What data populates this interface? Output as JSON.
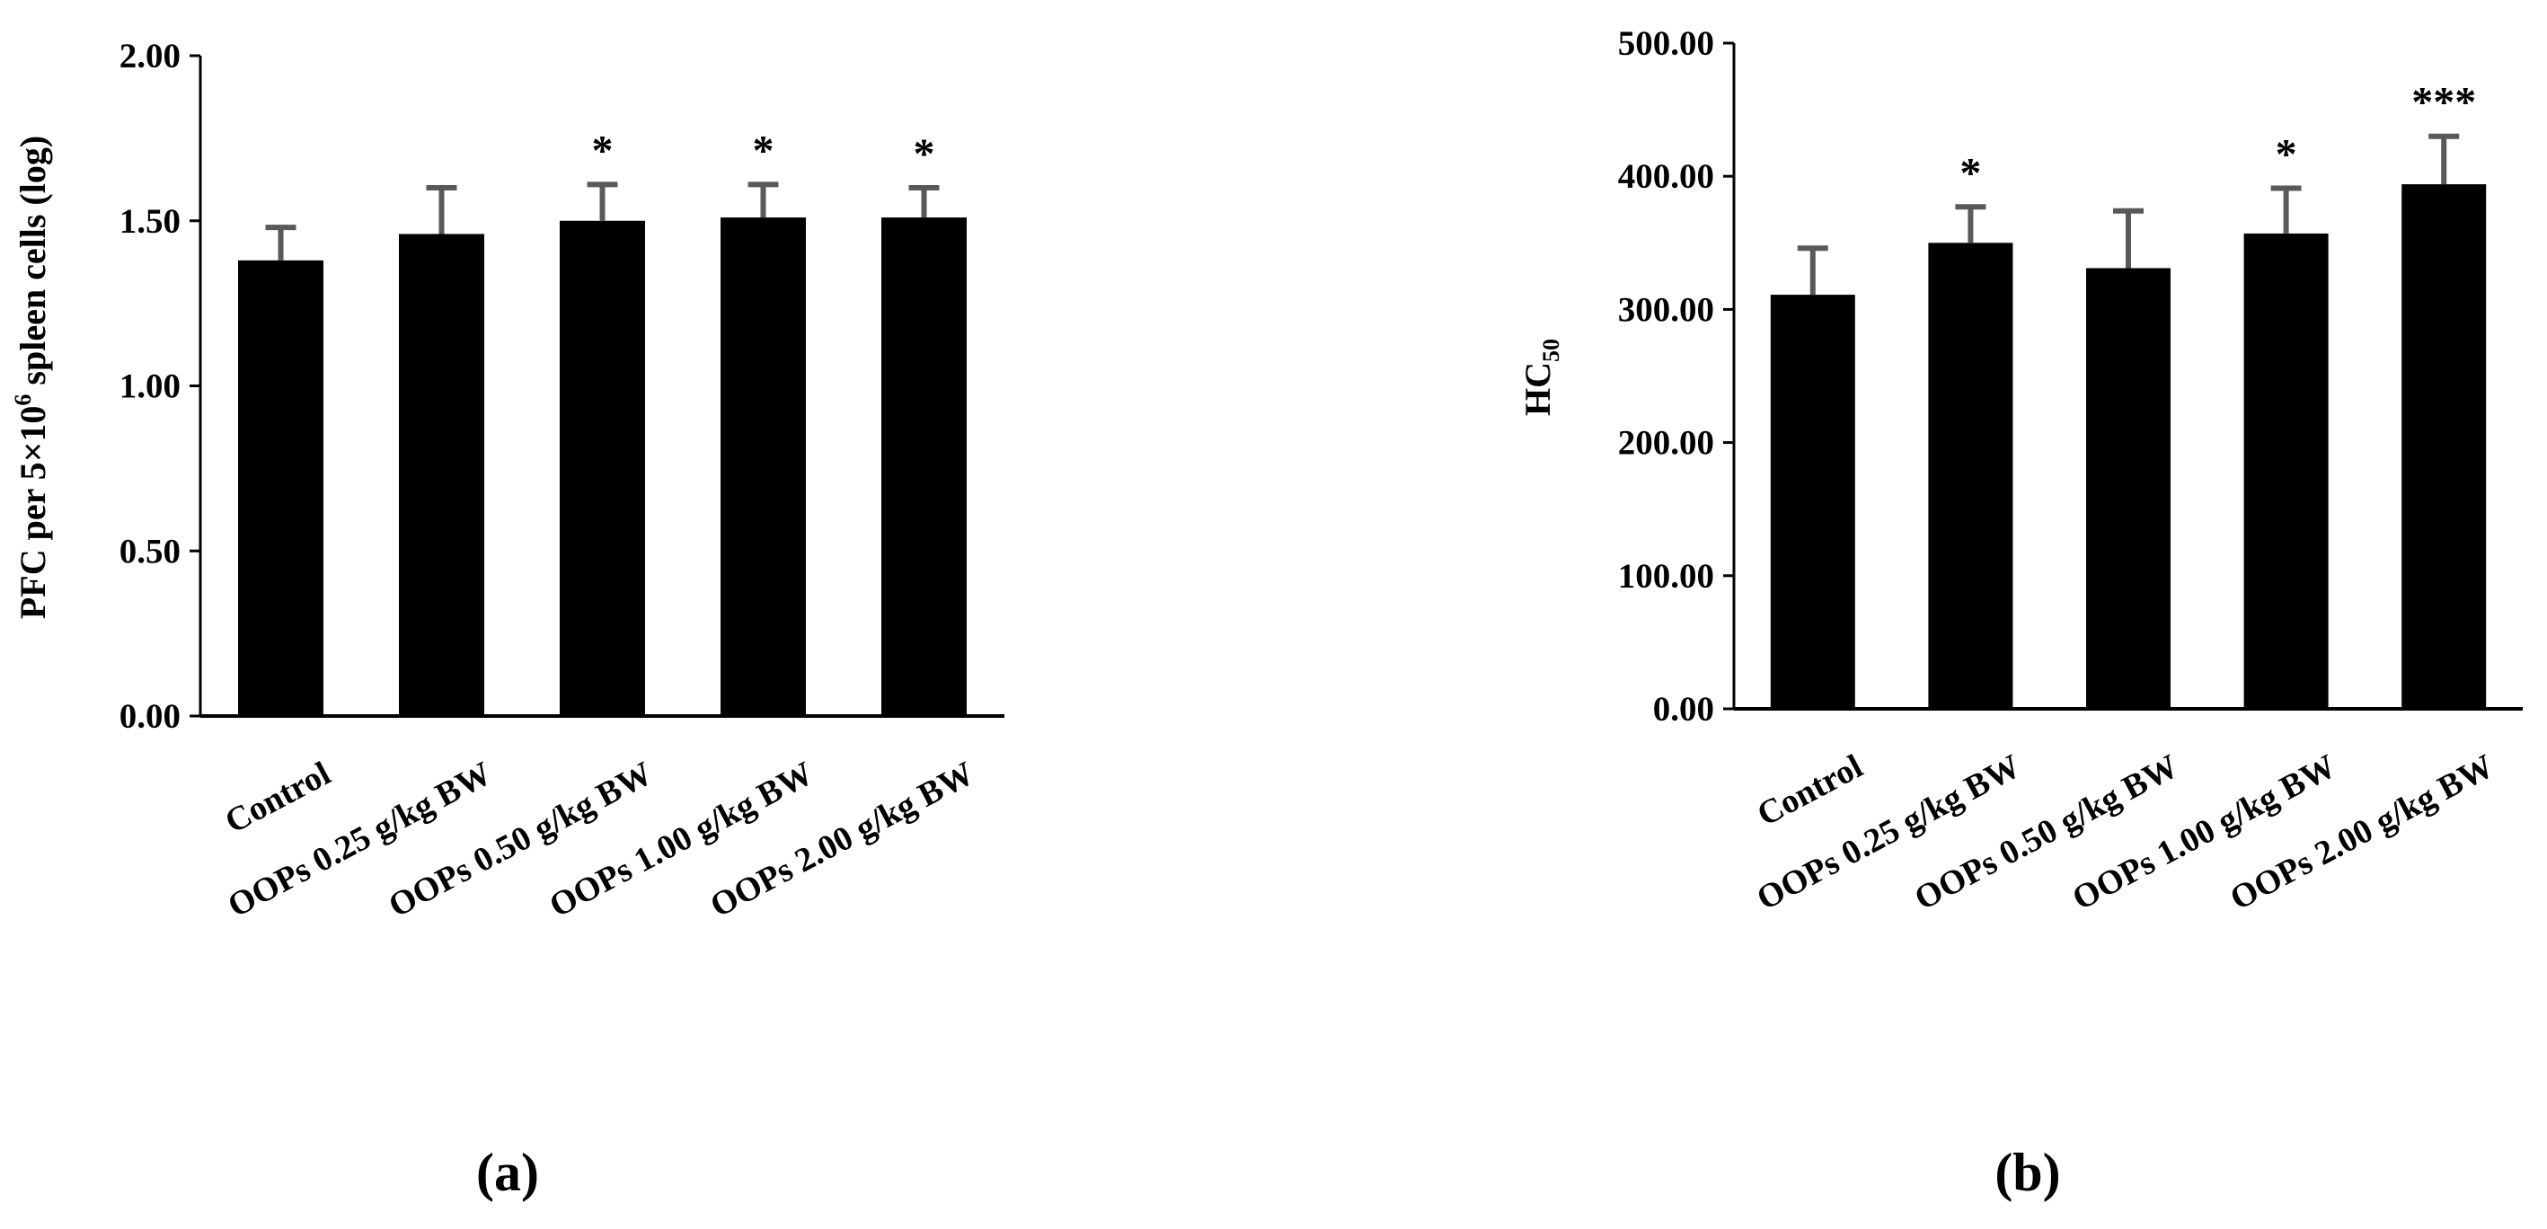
{
  "colors": {
    "bar": "#000000",
    "error_bar": "#595959",
    "axis": "#000000",
    "text": "#000000"
  },
  "chart_data": [
    {
      "type": "bar",
      "panel_label": "(a)",
      "title": "",
      "xlabel": "",
      "ylabel": {
        "main": "PFC per 5×10",
        "sup": "6",
        "rest": " spleen cells (log)"
      },
      "ylim": [
        0,
        2
      ],
      "yticks": [
        0,
        0.5,
        1,
        1.5,
        2
      ],
      "ytick_labels": [
        "0.00",
        "0.50",
        "1.00",
        "1.50",
        "2.00"
      ],
      "grid": false,
      "categories": [
        "Control",
        "OOPs 0.25 g/kg BW",
        "OOPs 0.50 g/kg BW",
        "OOPs 1.00 g/kg BW",
        "OOPs 2.00 g/kg BW"
      ],
      "values": [
        1.38,
        1.46,
        1.5,
        1.51,
        1.51
      ],
      "errors": [
        0.1,
        0.14,
        0.11,
        0.1,
        0.09
      ],
      "annotations": [
        "",
        "",
        "*",
        "*",
        "*"
      ]
    },
    {
      "type": "bar",
      "panel_label": "(b)",
      "title": "",
      "xlabel": "",
      "ylabel": {
        "main": "HC",
        "sub": "50"
      },
      "ylim": [
        0,
        500
      ],
      "yticks": [
        0,
        100,
        200,
        300,
        400,
        500
      ],
      "ytick_labels": [
        "0.00",
        "100.00",
        "200.00",
        "300.00",
        "400.00",
        "500.00"
      ],
      "grid": false,
      "categories": [
        "Control",
        "OOPs 0.25 g/kg BW",
        "OOPs 0.50 g/kg BW",
        "OOPs 1.00 g/kg BW",
        "OOPs 2.00 g/kg BW"
      ],
      "values": [
        311,
        350,
        331,
        357,
        394
      ],
      "errors": [
        35,
        27,
        43,
        34,
        36
      ],
      "annotations": [
        "",
        "*",
        "",
        "*",
        "***"
      ]
    }
  ]
}
